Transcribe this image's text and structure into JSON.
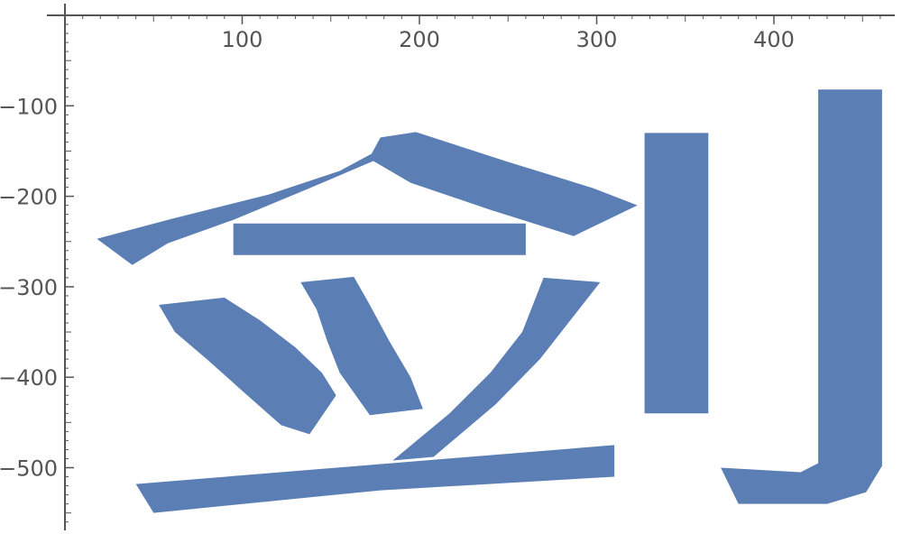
{
  "chart_data": {
    "type": "area",
    "title": "",
    "xlabel": "",
    "ylabel": "",
    "xlim": [
      -20,
      465
    ],
    "ylim": [
      -565,
      5
    ],
    "grid": false,
    "fill_color": "#5B7FB5",
    "axis_color": "#555555",
    "x_ticks": [
      {
        "value": 100,
        "label": "100"
      },
      {
        "value": 200,
        "label": "200"
      },
      {
        "value": 300,
        "label": "300"
      },
      {
        "value": 400,
        "label": "400"
      }
    ],
    "y_ticks": [
      {
        "value": -100,
        "label": "−100"
      },
      {
        "value": -200,
        "label": "−200"
      },
      {
        "value": -300,
        "label": "−300"
      },
      {
        "value": -400,
        "label": "−400"
      },
      {
        "value": -500,
        "label": "−500"
      }
    ],
    "shapes": [
      {
        "name": "roof-stroke",
        "points": [
          [
            18,
            -247
          ],
          [
            60,
            -225
          ],
          [
            115,
            -198
          ],
          [
            155,
            -172
          ],
          [
            173,
            -153
          ],
          [
            178,
            -135
          ],
          [
            198,
            -129
          ],
          [
            250,
            -162
          ],
          [
            298,
            -191
          ],
          [
            323,
            -210
          ],
          [
            287,
            -244
          ],
          [
            240,
            -215
          ],
          [
            195,
            -185
          ],
          [
            174,
            -161
          ],
          [
            138,
            -191
          ],
          [
            95,
            -226
          ],
          [
            58,
            -252
          ],
          [
            38,
            -276
          ],
          [
            18,
            -247
          ]
        ]
      },
      {
        "name": "bar-horizontal",
        "points": [
          [
            95,
            -230
          ],
          [
            260,
            -230
          ],
          [
            260,
            -265
          ],
          [
            95,
            -265
          ],
          [
            95,
            -230
          ]
        ]
      },
      {
        "name": "dot-left",
        "points": [
          [
            53,
            -320
          ],
          [
            90,
            -312
          ],
          [
            110,
            -337
          ],
          [
            130,
            -367
          ],
          [
            145,
            -395
          ],
          [
            153,
            -420
          ],
          [
            138,
            -463
          ],
          [
            122,
            -453
          ],
          [
            100,
            -415
          ],
          [
            80,
            -380
          ],
          [
            62,
            -350
          ],
          [
            53,
            -320
          ]
        ]
      },
      {
        "name": "dot-middle",
        "points": [
          [
            133,
            -295
          ],
          [
            163,
            -289
          ],
          [
            172,
            -320
          ],
          [
            183,
            -360
          ],
          [
            195,
            -400
          ],
          [
            202,
            -435
          ],
          [
            172,
            -442
          ],
          [
            155,
            -395
          ],
          [
            148,
            -360
          ],
          [
            142,
            -325
          ],
          [
            133,
            -295
          ]
        ]
      },
      {
        "name": "slant-stroke",
        "points": [
          [
            270,
            -290
          ],
          [
            302,
            -295
          ],
          [
            288,
            -330
          ],
          [
            268,
            -380
          ],
          [
            243,
            -430
          ],
          [
            208,
            -488
          ],
          [
            185,
            -492
          ],
          [
            217,
            -440
          ],
          [
            240,
            -395
          ],
          [
            258,
            -350
          ],
          [
            270,
            -290
          ]
        ]
      },
      {
        "name": "base-stroke",
        "points": [
          [
            40,
            -518
          ],
          [
            178,
            -496
          ],
          [
            310,
            -475
          ],
          [
            310,
            -510
          ],
          [
            178,
            -525
          ],
          [
            50,
            -550
          ],
          [
            40,
            -518
          ]
        ]
      },
      {
        "name": "vertical-short",
        "points": [
          [
            327,
            -130
          ],
          [
            363,
            -130
          ],
          [
            363,
            -440
          ],
          [
            327,
            -440
          ],
          [
            327,
            -130
          ]
        ]
      },
      {
        "name": "vertical-hook",
        "points": [
          [
            425,
            -82
          ],
          [
            461,
            -82
          ],
          [
            461,
            -498
          ],
          [
            452,
            -527
          ],
          [
            430,
            -540
          ],
          [
            380,
            -540
          ],
          [
            370,
            -500
          ],
          [
            415,
            -505
          ],
          [
            425,
            -495
          ],
          [
            425,
            -82
          ]
        ]
      }
    ]
  }
}
